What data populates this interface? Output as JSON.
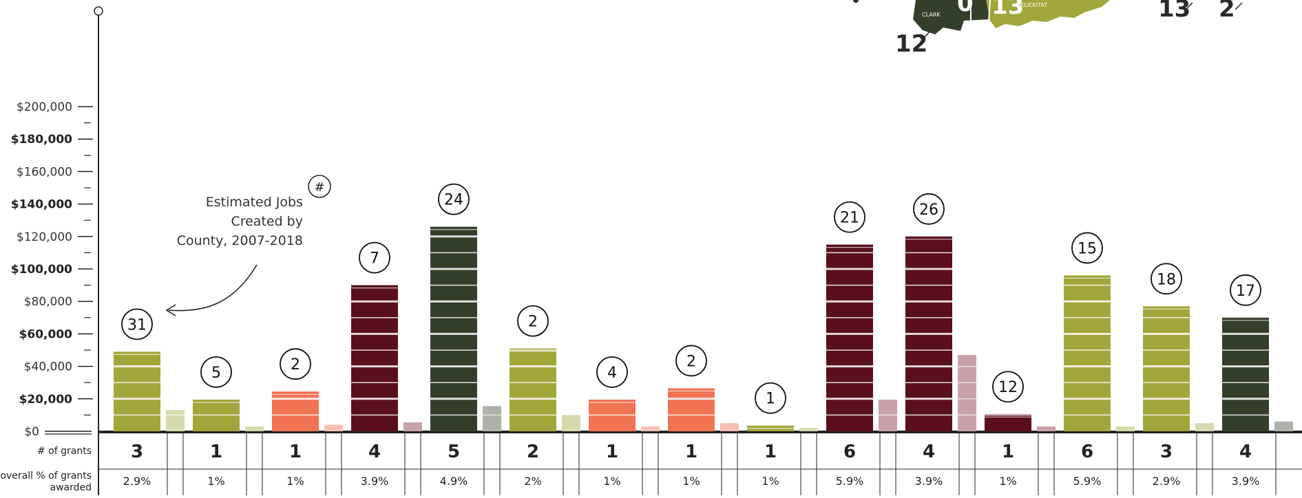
{
  "chart_data": {
    "type": "bar",
    "categories": [
      "",
      "",
      "",
      "",
      "",
      "",
      "",
      "",
      "",
      "",
      "",
      "",
      "",
      "",
      ""
    ],
    "series": [
      {
        "values": [
          49000,
          19500,
          24500,
          90000,
          126000,
          51000,
          19500,
          26500,
          3500,
          115000,
          120000,
          10500,
          96000,
          77000,
          70000
        ]
      },
      {
        "values": [
          13000,
          3000,
          4000,
          5500,
          15500,
          10000,
          3000,
          5000,
          2000,
          19500,
          47000,
          3000,
          3000,
          5000,
          6000
        ]
      }
    ],
    "bar_colors": [
      "#a1a63a",
      "#a1a63a",
      "#f07353",
      "#5a0f1c",
      "#343f2a",
      "#a1a63a",
      "#f07353",
      "#f07353",
      "#a1a63a",
      "#5a0f1c",
      "#5a0f1c",
      "#5a0f1c",
      "#a1a63a",
      "#a1a63a",
      "#343f2a"
    ],
    "light_colors": [
      "#d6d9ad",
      "#d6d9ad",
      "#f9c0b3",
      "#c7a3a9",
      "#adb1a9",
      "#d6d9ad",
      "#f9c0b3",
      "#f9c0b3",
      "#d6d9ad",
      "#c7a3a9",
      "#c7a3a9",
      "#c7a3a9",
      "#d6d9ad",
      "#d6d9ad",
      "#adb1a9"
    ],
    "jobs": [
      "31",
      "5",
      "2",
      "7",
      "24",
      "2",
      "4",
      "2",
      "1",
      "21",
      "26",
      "12",
      "15",
      "18",
      "17"
    ],
    "grants": [
      "3",
      "1",
      "1",
      "4",
      "5",
      "2",
      "1",
      "1",
      "1",
      "6",
      "4",
      "1",
      "6",
      "3",
      "4"
    ],
    "pct": [
      "2.9%",
      "1%",
      "1%",
      "3.9%",
      "4.9%",
      "2%",
      "1%",
      "1%",
      "1%",
      "5.9%",
      "3.9%",
      "1%",
      "5.9%",
      "2.9%",
      "3.9%"
    ],
    "ylim": [
      0,
      210000
    ],
    "yticks": [
      {
        "value": 0,
        "label": "$0",
        "bold": false
      },
      {
        "value": 20000,
        "label": "$20,000",
        "bold": true
      },
      {
        "value": 40000,
        "label": "$40,000",
        "bold": false
      },
      {
        "value": 60000,
        "label": "$60,000",
        "bold": true
      },
      {
        "value": 80000,
        "label": "$80,000",
        "bold": false
      },
      {
        "value": 100000,
        "label": "$100,000",
        "bold": true
      },
      {
        "value": 120000,
        "label": "$120,000",
        "bold": false
      },
      {
        "value": 140000,
        "label": "$140,000",
        "bold": true
      },
      {
        "value": 160000,
        "label": "$160,000",
        "bold": false
      },
      {
        "value": 180000,
        "label": "$180,000",
        "bold": true
      },
      {
        "value": 200000,
        "label": "$200,000",
        "bold": false
      }
    ],
    "row_labels": {
      "grants": "# of grants",
      "pct_line1": "overall % of grants",
      "pct_line2": "awarded"
    },
    "annotation": {
      "line1": "Estimated Jobs",
      "line2": "Created by",
      "line3": "County, 2007-2018",
      "icon": "hash-circle-icon"
    }
  },
  "map_inset": {
    "labels": [
      {
        "num": "12",
        "county": "CLARK"
      },
      {
        "num": "0",
        "county": ""
      },
      {
        "num": "13",
        "county": "KLICKITAT"
      },
      {
        "num": "13",
        "county": ""
      },
      {
        "num": "2",
        "county": ""
      }
    ],
    "colors": {
      "dark": "#343f2a",
      "olive": "#a1a63a"
    }
  }
}
